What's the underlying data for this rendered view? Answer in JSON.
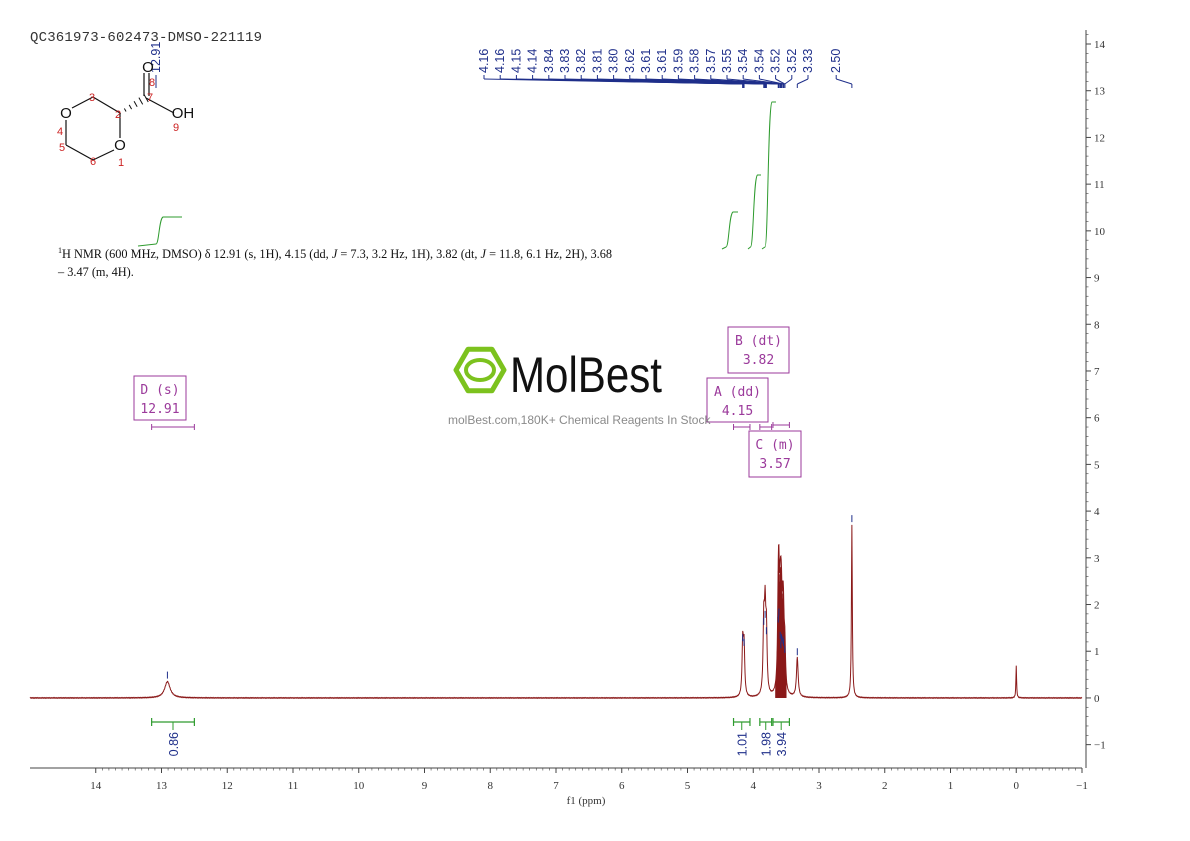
{
  "sample_id": "QC361973-602473-DMSO-221119",
  "summary_html_parts": {
    "nucleus": "1",
    "text_a": "H NMR (600 MHz, DMSO) δ 12.91 (s, 1H), 4.15 (dd, ",
    "j1": "J",
    "text_b": " = 7.3, 3.2 Hz, 1H), 3.82 (dt, ",
    "j2": "J",
    "text_c": " = 11.8, 6.1 Hz, 2H), 3.68 – 3.47 (m, 4H)."
  },
  "watermark": {
    "brand": "MolBest",
    "tagline": "molBest.com,180K+ Chemical Reagents In Stock"
  },
  "structure": {
    "atoms": [
      {
        "id": "O4",
        "label": "O"
      },
      {
        "id": "O1",
        "label": "O"
      },
      {
        "id": "O8",
        "label": "O"
      },
      {
        "id": "OH9",
        "label": "OH"
      }
    ],
    "numbers": [
      "3",
      "2",
      "4",
      "5",
      "6",
      "1",
      "7",
      "8",
      "9"
    ]
  },
  "chart_data": {
    "type": "line",
    "xlabel": "f1 (ppm)",
    "xlim": [
      15,
      -1
    ],
    "ylim": [
      -1.5,
      14.3
    ],
    "x_ticks": [
      14,
      13,
      12,
      11,
      10,
      9,
      8,
      7,
      6,
      5,
      4,
      3,
      2,
      1,
      0,
      -1
    ],
    "x_tick_labels": [
      "14",
      "13",
      "12",
      "11",
      "10",
      "9",
      "8",
      "7",
      "6",
      "5",
      "4",
      "3",
      "2",
      "1",
      "0",
      "−1"
    ],
    "y_ticks": [
      14,
      13,
      12,
      11,
      10,
      9,
      8,
      7,
      6,
      5,
      4,
      3,
      2,
      1,
      0,
      -1
    ],
    "y_tick_labels": [
      "14",
      "13",
      "12",
      "11",
      "10",
      "9",
      "8",
      "7",
      "6",
      "5",
      "4",
      "3",
      "2",
      "1",
      "0",
      "−1"
    ],
    "peaks": [
      {
        "ppm": 12.91,
        "height": 0.35,
        "width": 0.05
      },
      {
        "ppm": 4.16,
        "height": 1.15,
        "width": 0.012
      },
      {
        "ppm": 4.14,
        "height": 1.05,
        "width": 0.012
      },
      {
        "ppm": 3.84,
        "height": 1.5,
        "width": 0.012
      },
      {
        "ppm": 3.82,
        "height": 1.65,
        "width": 0.012
      },
      {
        "ppm": 3.8,
        "height": 1.3,
        "width": 0.012
      },
      {
        "ppm": 3.62,
        "height": 1.55,
        "width": 0.012
      },
      {
        "ppm": 3.61,
        "height": 1.7,
        "width": 0.012
      },
      {
        "ppm": 3.59,
        "height": 1.2,
        "width": 0.012
      },
      {
        "ppm": 3.58,
        "height": 1.0,
        "width": 0.012
      },
      {
        "ppm": 3.57,
        "height": 1.15,
        "width": 0.012
      },
      {
        "ppm": 3.55,
        "height": 1.1,
        "width": 0.012
      },
      {
        "ppm": 3.54,
        "height": 1.05,
        "width": 0.012
      },
      {
        "ppm": 3.52,
        "height": 0.9,
        "width": 0.012
      },
      {
        "ppm": 3.33,
        "height": 0.85,
        "width": 0.015
      },
      {
        "ppm": 2.5,
        "height": 3.7,
        "width": 0.008
      },
      {
        "ppm": 0.0,
        "height": 0.7,
        "width": 0.006
      }
    ],
    "peak_labels": [
      "4.16",
      "4.16",
      "4.15",
      "4.14",
      "3.84",
      "3.83",
      "3.82",
      "3.81",
      "3.80",
      "3.62",
      "3.61",
      "3.61",
      "3.59",
      "3.58",
      "3.57",
      "3.55",
      "3.54",
      "3.54",
      "3.52",
      "3.52",
      "3.33",
      "2.50"
    ],
    "peak_label_ppm": [
      4.16,
      4.16,
      4.15,
      4.14,
      3.84,
      3.83,
      3.82,
      3.81,
      3.8,
      3.62,
      3.61,
      3.61,
      3.59,
      3.58,
      3.57,
      3.55,
      3.54,
      3.54,
      3.52,
      3.52,
      3.33,
      2.5
    ],
    "top_label": "12.91",
    "integrals": [
      {
        "from": 13.15,
        "to": 12.5,
        "value": "0.86"
      },
      {
        "from": 4.3,
        "to": 4.05,
        "value": "1.01"
      },
      {
        "from": 3.9,
        "to": 3.72,
        "value": "1.98"
      },
      {
        "from": 3.7,
        "to": 3.45,
        "value": "3.94"
      }
    ],
    "multiplets": [
      {
        "name": "D",
        "type": "(s)",
        "shift": "12.91",
        "range": [
          13.15,
          12.5
        ]
      },
      {
        "name": "B",
        "type": "(dt)",
        "shift": "3.82",
        "range": [
          3.9,
          3.72
        ]
      },
      {
        "name": "A",
        "type": "(dd)",
        "shift": "4.15",
        "range": [
          4.3,
          4.05
        ]
      },
      {
        "name": "C",
        "type": "(m)",
        "shift": "3.57",
        "range": [
          3.7,
          3.45
        ]
      }
    ],
    "colors": {
      "spectrum": "#8b1a1a",
      "peak_labels": "#1f2f8a",
      "integrals": "#2e9b2e",
      "multiplet_boxes": "#9b3a9b",
      "axis": "#444444"
    }
  }
}
